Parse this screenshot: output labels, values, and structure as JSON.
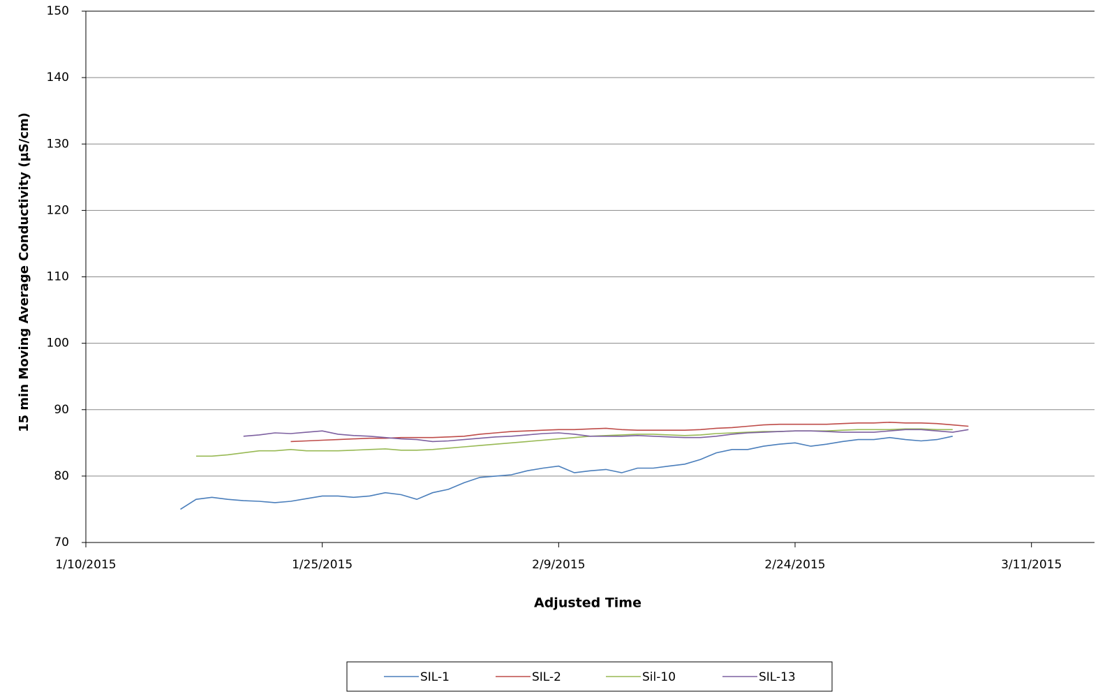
{
  "chart_data": {
    "type": "line",
    "x_label": "Adjusted Time",
    "y_label": "15 min  Moving  Average Conductivity  (µS/cm)",
    "ylim": [
      70,
      150
    ],
    "yticks": [
      70,
      80,
      90,
      100,
      110,
      120,
      130,
      140,
      150
    ],
    "xlim": [
      "1/10/2015",
      "3/15/2015"
    ],
    "xticks": [
      "1/10/2015",
      "1/25/2015",
      "2/9/2015",
      "2/24/2015",
      "3/11/2015"
    ],
    "grid": true,
    "legend": "bottom",
    "x": [
      "1/16/2015",
      "1/17/2015",
      "1/18/2015",
      "1/19/2015",
      "1/20/2015",
      "1/21/2015",
      "1/22/2015",
      "1/23/2015",
      "1/24/2015",
      "1/25/2015",
      "1/26/2015",
      "1/27/2015",
      "1/28/2015",
      "1/29/2015",
      "1/30/2015",
      "1/31/2015",
      "2/1/2015",
      "2/2/2015",
      "2/3/2015",
      "2/4/2015",
      "2/5/2015",
      "2/6/2015",
      "2/7/2015",
      "2/8/2015",
      "2/9/2015",
      "2/10/2015",
      "2/11/2015",
      "2/12/2015",
      "2/13/2015",
      "2/14/2015",
      "2/15/2015",
      "2/16/2015",
      "2/17/2015",
      "2/18/2015",
      "2/19/2015",
      "2/20/2015",
      "2/21/2015",
      "2/22/2015",
      "2/23/2015",
      "2/24/2015",
      "2/25/2015",
      "2/26/2015",
      "2/27/2015",
      "2/28/2015",
      "3/1/2015",
      "3/2/2015",
      "3/3/2015",
      "3/4/2015",
      "3/5/2015",
      "3/6/2015",
      "3/7/2015"
    ],
    "series": [
      {
        "name": "SIL-1",
        "color": "#4a7ebb",
        "values": [
          75,
          76.5,
          76.8,
          76.5,
          76.3,
          76.2,
          76,
          76.2,
          76.6,
          77,
          77,
          76.8,
          77,
          77.5,
          77.2,
          76.5,
          77.5,
          78,
          79,
          79.8,
          80,
          80.2,
          80.8,
          81.2,
          81.5,
          80.5,
          80.8,
          81,
          80.5,
          81.2,
          81.2,
          81.5,
          81.8,
          82.5,
          83.5,
          84,
          84,
          84.5,
          84.8,
          85,
          84.5,
          84.8,
          85.2,
          85.5,
          85.5,
          85.8,
          85.5,
          85.3,
          85.5,
          86,
          null
        ]
      },
      {
        "name": "SIL-2",
        "color": "#be4b48",
        "values": [
          null,
          null,
          null,
          null,
          null,
          null,
          null,
          85.2,
          85.3,
          85.4,
          85.5,
          85.6,
          85.7,
          85.7,
          85.8,
          85.8,
          85.8,
          85.9,
          86,
          86.3,
          86.5,
          86.7,
          86.8,
          86.9,
          87,
          87,
          87.1,
          87.2,
          87,
          86.9,
          86.9,
          86.9,
          86.9,
          87,
          87.2,
          87.3,
          87.5,
          87.7,
          87.8,
          87.8,
          87.8,
          87.8,
          87.9,
          88,
          88,
          88.1,
          88,
          88,
          87.9,
          87.7,
          87.5
        ]
      },
      {
        "name": "Sil-10",
        "color": "#98b954",
        "values": [
          null,
          83,
          83,
          83.2,
          83.5,
          83.8,
          83.8,
          84,
          83.8,
          83.8,
          83.8,
          83.9,
          84,
          84.1,
          83.9,
          83.9,
          84,
          84.2,
          84.4,
          84.6,
          84.8,
          85,
          85.2,
          85.4,
          85.6,
          85.8,
          86,
          86.1,
          86.2,
          86.3,
          86.3,
          86.2,
          86.1,
          86.2,
          86.4,
          86.5,
          86.6,
          86.7,
          86.7,
          86.8,
          86.8,
          86.8,
          86.9,
          87,
          87,
          87,
          87.1,
          87.1,
          87,
          87,
          null
        ]
      },
      {
        "name": "SIL-13",
        "color": "#7d60a0",
        "values": [
          null,
          null,
          null,
          null,
          86,
          86.2,
          86.5,
          86.4,
          86.6,
          86.8,
          86.3,
          86.1,
          86,
          85.8,
          85.6,
          85.5,
          85.2,
          85.3,
          85.5,
          85.7,
          85.9,
          86,
          86.2,
          86.4,
          86.5,
          86.3,
          86,
          86,
          86,
          86.1,
          86,
          85.9,
          85.8,
          85.8,
          86,
          86.3,
          86.5,
          86.6,
          86.7,
          86.8,
          86.8,
          86.7,
          86.6,
          86.6,
          86.6,
          86.8,
          87,
          87,
          86.8,
          86.6,
          87
        ]
      }
    ]
  }
}
